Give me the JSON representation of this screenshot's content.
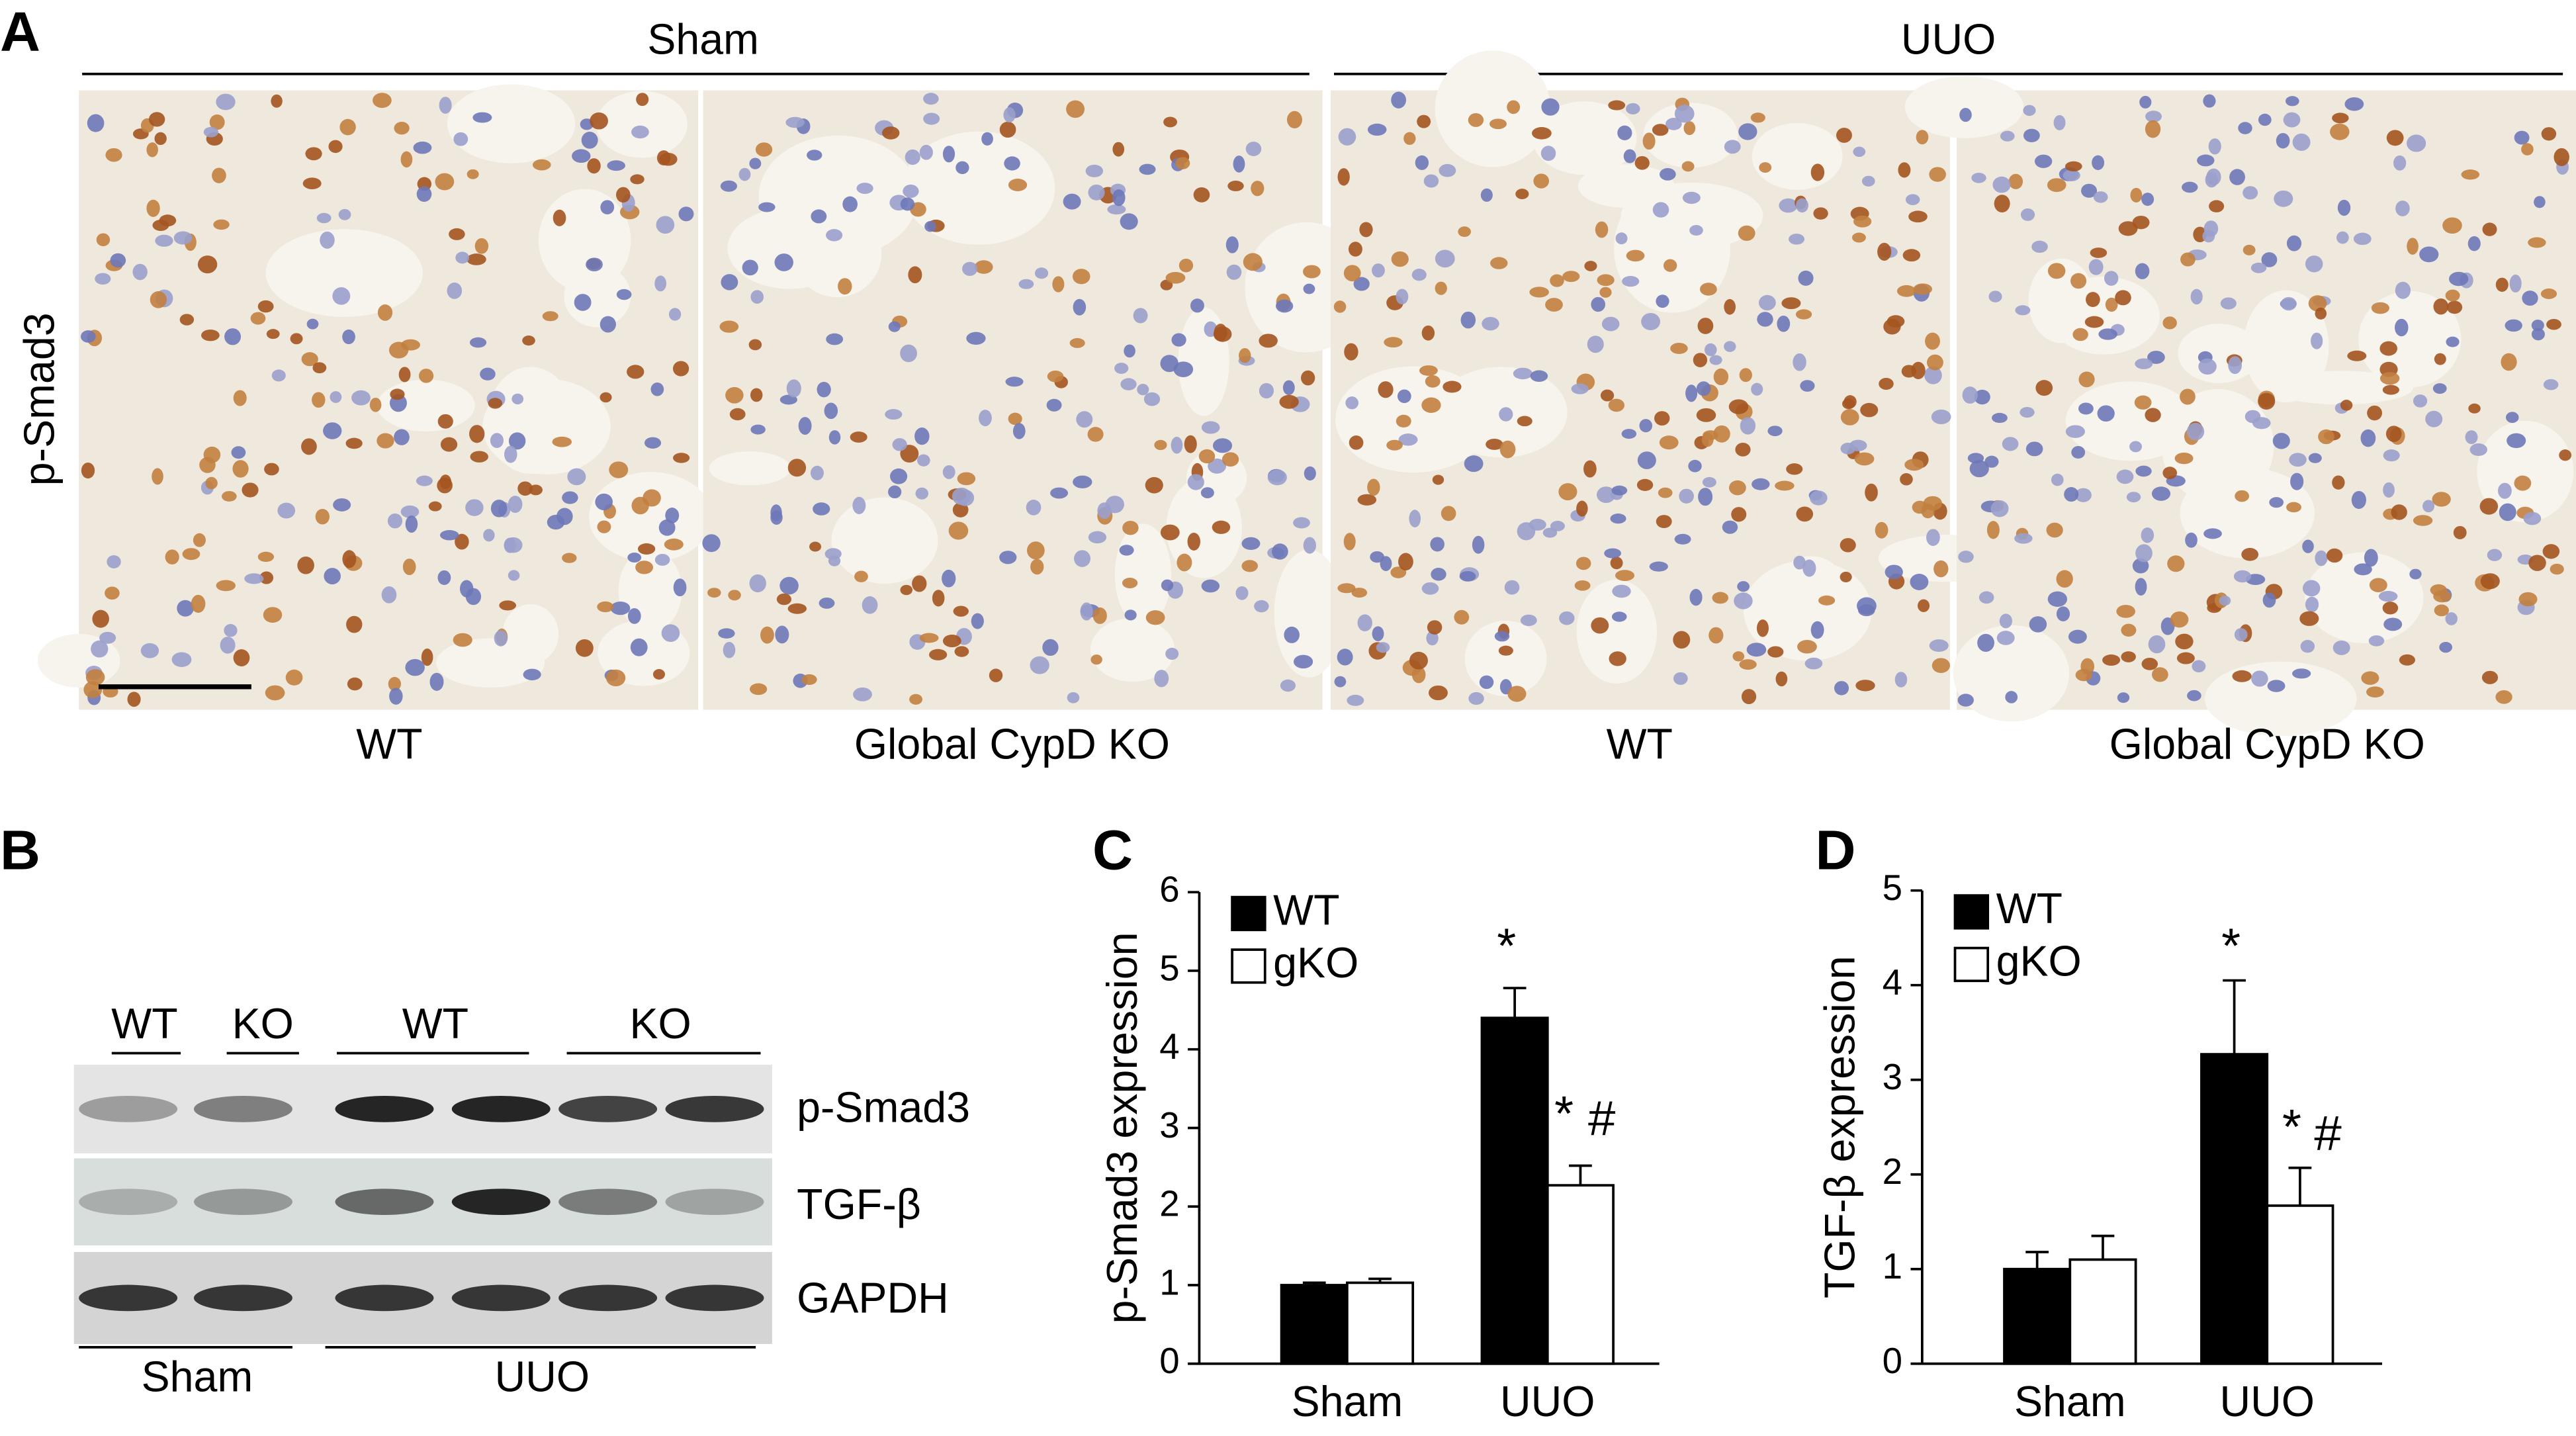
{
  "panel_a": {
    "label": "A",
    "groups": [
      "Sham",
      "UUO"
    ],
    "stain": "p-Smad3",
    "columns": [
      "WT",
      "Global CypD KO",
      "WT",
      "Global CypD KO"
    ]
  },
  "panel_b": {
    "label": "B",
    "lanes": [
      "WT",
      "KO",
      "WT",
      "KO"
    ],
    "bands": [
      "p-Smad3",
      "TGF-β",
      "GAPDH"
    ],
    "groups": [
      "Sham",
      "UUO"
    ]
  },
  "chart_data": [
    {
      "type": "bar",
      "panel": "C",
      "y_label": "p-Smad3 expression",
      "categories": [
        "Sham",
        "UUO"
      ],
      "series": [
        {
          "name": "WT",
          "color": "#000000",
          "values": [
            1.0,
            4.4
          ],
          "errors": [
            0.03,
            0.38
          ]
        },
        {
          "name": "gKO",
          "color": "#ffffff",
          "values": [
            1.03,
            2.27
          ],
          "errors": [
            0.05,
            0.25
          ]
        }
      ],
      "ylim": [
        0,
        6
      ],
      "yticks": [
        0,
        1,
        2,
        3,
        4,
        5,
        6
      ],
      "annotations": [
        "*",
        "*",
        "#"
      ]
    },
    {
      "type": "bar",
      "panel": "D",
      "y_label": "TGF-β expression",
      "categories": [
        "Sham",
        "UUO"
      ],
      "series": [
        {
          "name": "WT",
          "color": "#000000",
          "values": [
            1.0,
            3.27
          ],
          "errors": [
            0.18,
            0.78
          ]
        },
        {
          "name": "gKO",
          "color": "#ffffff",
          "values": [
            1.1,
            1.67
          ],
          "errors": [
            0.25,
            0.4
          ]
        }
      ],
      "ylim": [
        0,
        5
      ],
      "yticks": [
        0,
        1,
        2,
        3,
        4,
        5
      ],
      "annotations": [
        "*",
        "*",
        "#"
      ]
    }
  ]
}
